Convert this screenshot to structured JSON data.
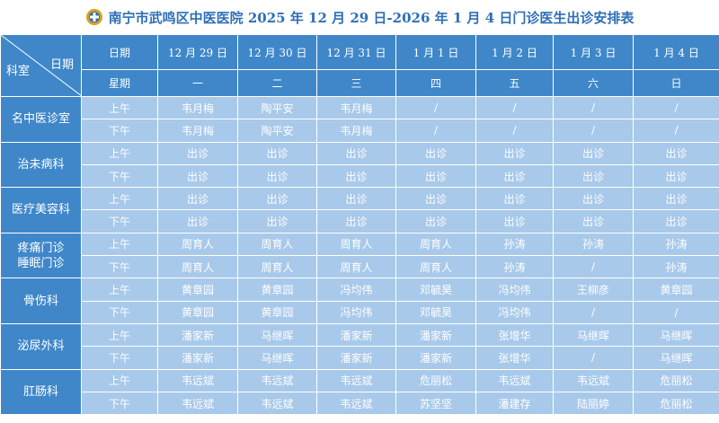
{
  "title": "南宁市武鸣区中医医院 2025 年 12 月 29 日-2026 年 1 月 4 日门诊医生出诊安排表",
  "header": {
    "corner_top": "日期",
    "corner_bottom": "科室",
    "date_label": "日期",
    "weekday_label": "星期",
    "dates": [
      "12 月 29 日",
      "12 月 30 日",
      "12 月 31 日",
      "1 月 1 日",
      "1 月 2 日",
      "1 月 3 日",
      "1 月 4 日"
    ],
    "weekdays": [
      "一",
      "二",
      "三",
      "四",
      "五",
      "六",
      "日"
    ]
  },
  "departments": [
    {
      "name_lines": [
        "名中医诊室"
      ],
      "rows": [
        {
          "period": "上午",
          "cells": [
            "韦月梅",
            "陶平安",
            "韦月梅",
            "/",
            "/",
            "/",
            "/"
          ]
        },
        {
          "period": "下午",
          "cells": [
            "韦月梅",
            "陶平安",
            "韦月梅",
            "/",
            "/",
            "/",
            "/"
          ]
        }
      ]
    },
    {
      "name_lines": [
        "治未病科"
      ],
      "rows": [
        {
          "period": "上午",
          "cells": [
            "出诊",
            "出诊",
            "出诊",
            "出诊",
            "出诊",
            "出诊",
            "出诊"
          ]
        },
        {
          "period": "下午",
          "cells": [
            "出诊",
            "出诊",
            "出诊",
            "出诊",
            "出诊",
            "出诊",
            "出诊"
          ]
        }
      ]
    },
    {
      "name_lines": [
        "医疗美容科"
      ],
      "rows": [
        {
          "period": "上午",
          "cells": [
            "出诊",
            "出诊",
            "出诊",
            "出诊",
            "出诊",
            "出诊",
            "出诊"
          ]
        },
        {
          "period": "下午",
          "cells": [
            "出诊",
            "出诊",
            "出诊",
            "出诊",
            "出诊",
            "出诊",
            "出诊"
          ]
        }
      ]
    },
    {
      "name_lines": [
        "疼痛门诊",
        "睡眠门诊"
      ],
      "rows": [
        {
          "period": "上午",
          "cells": [
            "周育人",
            "周育人",
            "周育人",
            "周育人",
            "孙涛",
            "孙涛",
            "孙涛"
          ]
        },
        {
          "period": "下午",
          "cells": [
            "周育人",
            "周育人",
            "周育人",
            "周育人",
            "孙涛",
            "/",
            "孙涛"
          ]
        }
      ]
    },
    {
      "name_lines": [
        "骨伤科"
      ],
      "rows": [
        {
          "period": "上午",
          "cells": [
            "黄章园",
            "黄章园",
            "冯均伟",
            "邓毓昊",
            "冯均伟",
            "王柳彦",
            "黄章园"
          ]
        },
        {
          "period": "下午",
          "cells": [
            "黄章园",
            "黄章园",
            "冯均伟",
            "邓毓昊",
            "冯均伟",
            "/",
            "/"
          ]
        }
      ]
    },
    {
      "name_lines": [
        "泌尿外科"
      ],
      "rows": [
        {
          "period": "上午",
          "cells": [
            "潘家新",
            "马继晖",
            "潘家新",
            "潘家新",
            "张增华",
            "马继晖",
            "马继晖"
          ]
        },
        {
          "period": "下午",
          "cells": [
            "潘家新",
            "马继晖",
            "潘家新",
            "潘家新",
            "张增华",
            "/",
            "马继晖"
          ]
        }
      ]
    },
    {
      "name_lines": [
        "肛肠科"
      ],
      "rows": [
        {
          "period": "上午",
          "cells": [
            "韦远斌",
            "韦远斌",
            "韦远斌",
            "危丽松",
            "韦远斌",
            "韦远斌",
            "危丽松"
          ]
        },
        {
          "period": "下午",
          "cells": [
            "韦远斌",
            "韦远斌",
            "韦远斌",
            "苏坚坚",
            "潘建存",
            "陆丽婷",
            "危丽松"
          ]
        }
      ]
    }
  ]
}
